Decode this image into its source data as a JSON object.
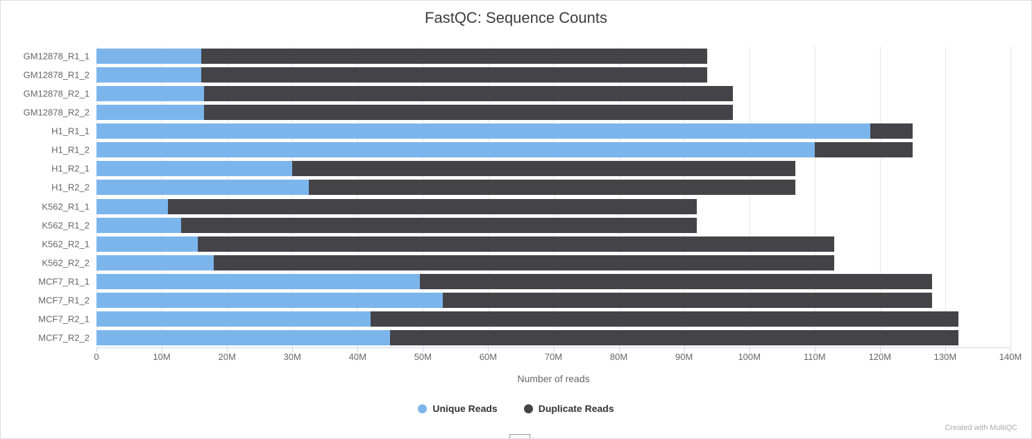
{
  "chart_data": {
    "type": "bar",
    "orientation": "horizontal",
    "stacked": true,
    "title": "FastQC: Sequence Counts",
    "xlabel": "Number of reads",
    "categories": [
      "GM12878_R1_1",
      "GM12878_R1_2",
      "GM12878_R2_1",
      "GM12878_R2_2",
      "H1_R1_1",
      "H1_R1_2",
      "H1_R2_1",
      "H1_R2_2",
      "K562_R1_1",
      "K562_R1_2",
      "K562_R2_1",
      "K562_R2_2",
      "MCF7_R1_1",
      "MCF7_R1_2",
      "MCF7_R2_1",
      "MCF7_R2_2"
    ],
    "series": [
      {
        "name": "Unique Reads",
        "color": "#7cb5ec",
        "values_millions": [
          16,
          16,
          16.5,
          16.5,
          118.5,
          110,
          30,
          32.5,
          11,
          13,
          15.5,
          18,
          49.5,
          53,
          42,
          45
        ]
      },
      {
        "name": "Duplicate Reads",
        "color": "#434348",
        "values_millions": [
          77.5,
          77.5,
          81,
          81,
          6.5,
          15,
          77,
          74.5,
          81,
          79,
          97.5,
          95,
          78.5,
          75,
          90,
          87
        ]
      }
    ],
    "xlim_millions": [
      0,
      140
    ],
    "xtick_step_millions": 10,
    "xtick_labels": [
      "0",
      "10M",
      "20M",
      "30M",
      "40M",
      "50M",
      "60M",
      "70M",
      "80M",
      "90M",
      "100M",
      "110M",
      "120M",
      "130M",
      "140M"
    ],
    "grid": true,
    "legend_position": "bottom",
    "layout": {
      "background": "#ffffff",
      "grid_color": "#e6e6e6",
      "axis_line_color": "#ccd6eb",
      "label_color": "#666666",
      "title_color": "#3c3c3c"
    }
  },
  "footer": {
    "credit": "Created with MultiQC"
  }
}
